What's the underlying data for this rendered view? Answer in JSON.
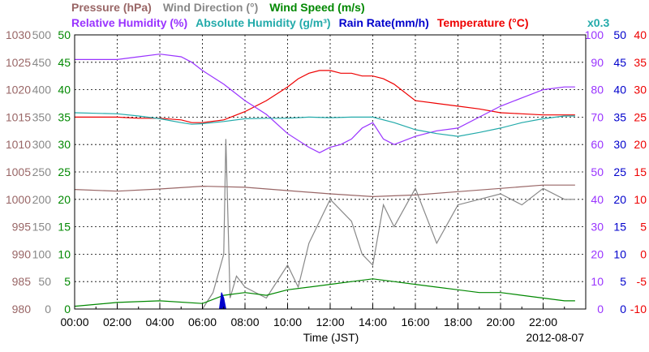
{
  "chart_data": {
    "type": "line",
    "title_row1": [
      {
        "text": "Pressure (hPa)",
        "color": "#996666"
      },
      {
        "text": "Wind Direction (°)",
        "color": "#888888"
      },
      {
        "text": "Wind Speed (m/s)",
        "color": "#008800"
      }
    ],
    "title_row2": [
      {
        "text": "Relative Humidity (%)",
        "color": "#9933ff"
      },
      {
        "text": "Absolute Humidity (g/m³)",
        "color": "#22aaaa"
      },
      {
        "text": "Rain Rate(mm/h)",
        "color": "#0000cc"
      },
      {
        "text": "Temperature (°C)",
        "color": "#ee0000"
      }
    ],
    "rain_scale_note": "x0.3",
    "xlabel": "Time (JST)",
    "date": "2012-08-07",
    "x_ticks": [
      "00:00",
      "02:00",
      "04:00",
      "06:00",
      "08:00",
      "10:00",
      "12:00",
      "14:00",
      "16:00",
      "18:00",
      "20:00",
      "22:00"
    ],
    "x_range_hours": [
      0,
      24
    ],
    "axes": {
      "pressure": {
        "ticks": [
          "1030",
          "1025",
          "1020",
          "1015",
          "1010",
          "1005",
          "1000",
          "995",
          "990",
          "985",
          "980"
        ],
        "range": [
          980,
          1030
        ],
        "color": "#996666"
      },
      "wind_dir": {
        "ticks": [
          "500",
          "450",
          "400",
          "350",
          "300",
          "250",
          "200",
          "150",
          "100",
          "50",
          "0"
        ],
        "range": [
          0,
          500
        ],
        "color": "#888888"
      },
      "wind_speed": {
        "ticks": [
          "50",
          "45",
          "40",
          "35",
          "30",
          "25",
          "20",
          "15",
          "10",
          "5",
          "0"
        ],
        "range": [
          0,
          50
        ],
        "color": "#008800"
      },
      "rh": {
        "ticks": [
          "100",
          "90",
          "80",
          "70",
          "60",
          "50",
          "40",
          "30",
          "20",
          "10",
          "0"
        ],
        "range": [
          0,
          100
        ],
        "color": "#9933ff"
      },
      "rain": {
        "ticks": [
          "50",
          "45",
          "40",
          "35",
          "30",
          "25",
          "20",
          "15",
          "10",
          "5",
          "0"
        ],
        "range": [
          0,
          50
        ],
        "color": "#0000cc"
      },
      "temp": {
        "ticks": [
          "40",
          "35",
          "30",
          "25",
          "20",
          "15",
          "10",
          "5",
          "0",
          "-5",
          "-10"
        ],
        "range": [
          -10,
          40
        ],
        "color": "#ee0000"
      }
    },
    "series": [
      {
        "name": "Temperature (°C)",
        "color": "#ee0000",
        "axis": "temp",
        "x": [
          0,
          1,
          2,
          3,
          4,
          5,
          5.5,
          6,
          7,
          8,
          9,
          10,
          10.5,
          11,
          11.5,
          12,
          12.5,
          13,
          13.5,
          14,
          14.5,
          15,
          16,
          17,
          18,
          19,
          20,
          21,
          22,
          23,
          23.5
        ],
        "y": [
          25,
          25,
          25,
          24.8,
          24.8,
          24.5,
          24,
          24,
          24.5,
          26,
          28,
          30.5,
          32,
          33,
          33.5,
          33.5,
          33,
          33,
          32.5,
          32.5,
          32,
          31,
          28,
          27.5,
          27,
          26.5,
          25.8,
          25.6,
          25.4,
          25.4,
          25.4
        ]
      },
      {
        "name": "Relative Humidity (%)",
        "color": "#9933ff",
        "axis": "rh",
        "x": [
          0,
          1,
          2,
          3,
          4,
          5,
          5.5,
          6,
          7,
          8,
          9,
          10,
          11,
          11.5,
          12,
          12.5,
          13,
          13.5,
          14,
          14.5,
          15,
          16,
          17,
          18,
          19,
          20,
          21,
          22,
          23,
          23.5
        ],
        "y": [
          91,
          91,
          91,
          92,
          93,
          92,
          90,
          87,
          82,
          76,
          71,
          64,
          59,
          57,
          59,
          60,
          62,
          66,
          68,
          62,
          60,
          63,
          65,
          66,
          70,
          74,
          77,
          80,
          81,
          81
        ]
      },
      {
        "name": "Absolute Humidity (g/m³)",
        "color": "#22aaaa",
        "axis": "wind_dir",
        "x": [
          0,
          1,
          2,
          3,
          4,
          5,
          5.5,
          6,
          7,
          8,
          9,
          10,
          11,
          12,
          13,
          14,
          15,
          16,
          17,
          18,
          19,
          20,
          21,
          22,
          23,
          23.5
        ],
        "y": [
          358,
          357,
          356,
          352,
          347,
          340,
          337,
          338,
          342,
          347,
          348,
          348,
          350,
          349,
          350,
          350,
          340,
          327,
          320,
          315,
          322,
          330,
          340,
          347,
          352,
          352
        ]
      },
      {
        "name": "Pressure (hPa)",
        "color": "#996666",
        "axis": "pressure",
        "x": [
          0,
          2,
          4,
          6,
          8,
          10,
          12,
          14,
          16,
          18,
          20,
          22,
          23.5
        ],
        "y": [
          1001.8,
          1001.5,
          1001.9,
          1002.4,
          1002.2,
          1001.6,
          1001.0,
          1000.5,
          1000.8,
          1001.4,
          1002.0,
          1002.6,
          1002.6
        ]
      },
      {
        "name": "Wind Direction (°)",
        "color": "#888888",
        "axis": "wind_dir",
        "x": [
          6,
          6.5,
          7,
          7.1,
          7.3,
          7.6,
          8,
          9,
          10,
          10.5,
          11,
          12,
          13,
          13.5,
          14,
          14.5,
          15,
          16,
          17,
          18,
          19,
          20,
          21,
          22,
          23,
          23.5
        ],
        "y": [
          0,
          30,
          100,
          310,
          20,
          60,
          40,
          20,
          80,
          40,
          120,
          200,
          160,
          100,
          80,
          190,
          150,
          220,
          120,
          190,
          200,
          210,
          190,
          220,
          200,
          200
        ]
      },
      {
        "name": "Wind Speed (m/s)",
        "color": "#008800",
        "axis": "wind_speed",
        "x": [
          0,
          2,
          4,
          6,
          7,
          8,
          9,
          10,
          11,
          12,
          13,
          14,
          15,
          16,
          17,
          18,
          19,
          20,
          21,
          22,
          23,
          23.5
        ],
        "y": [
          0.5,
          1.2,
          1.5,
          1,
          2.5,
          3,
          2.5,
          3.5,
          4,
          4.5,
          5,
          5.5,
          5,
          4.5,
          4,
          3.5,
          3,
          3,
          2.5,
          2,
          1.5,
          1.5
        ]
      },
      {
        "name": "Rain Rate(mm/h)",
        "color": "#0000cc",
        "axis": "rain",
        "x": [
          6.8,
          6.9,
          7.0,
          7.1
        ],
        "y": [
          0,
          3,
          2,
          0
        ]
      }
    ]
  }
}
